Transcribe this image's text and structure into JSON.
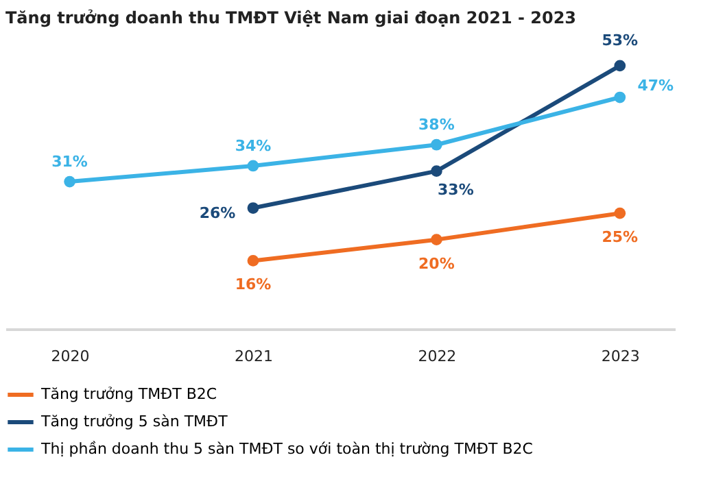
{
  "chart_data": {
    "type": "line",
    "title": "Tăng trưởng doanh thu TMĐT Việt Nam giai đoạn 2021 - 2023",
    "categories": [
      "2020",
      "2021",
      "2022",
      "2023"
    ],
    "series": [
      {
        "name": "Tăng trưởng TMĐT B2C",
        "color": "#ef6c22",
        "values": [
          null,
          16,
          20,
          25
        ],
        "value_labels": [
          null,
          "16%",
          "20%",
          "25%"
        ]
      },
      {
        "name": "Tăng trưởng 5 sàn TMĐT",
        "color": "#1b4a7a",
        "values": [
          null,
          26,
          33,
          53
        ],
        "value_labels": [
          null,
          "26%",
          "33%",
          "53%"
        ]
      },
      {
        "name": "Thị phần doanh thu 5 sàn TMĐT so với toàn thị trường TMĐT B2C",
        "color": "#3bb3e6",
        "values": [
          31,
          34,
          38,
          47
        ],
        "value_labels": [
          "31%",
          "34%",
          "38%",
          "47%"
        ]
      }
    ],
    "marker": "circle",
    "line_style": "solid",
    "grid": false,
    "legend": "bottom left",
    "tick_labels": "x"
  }
}
